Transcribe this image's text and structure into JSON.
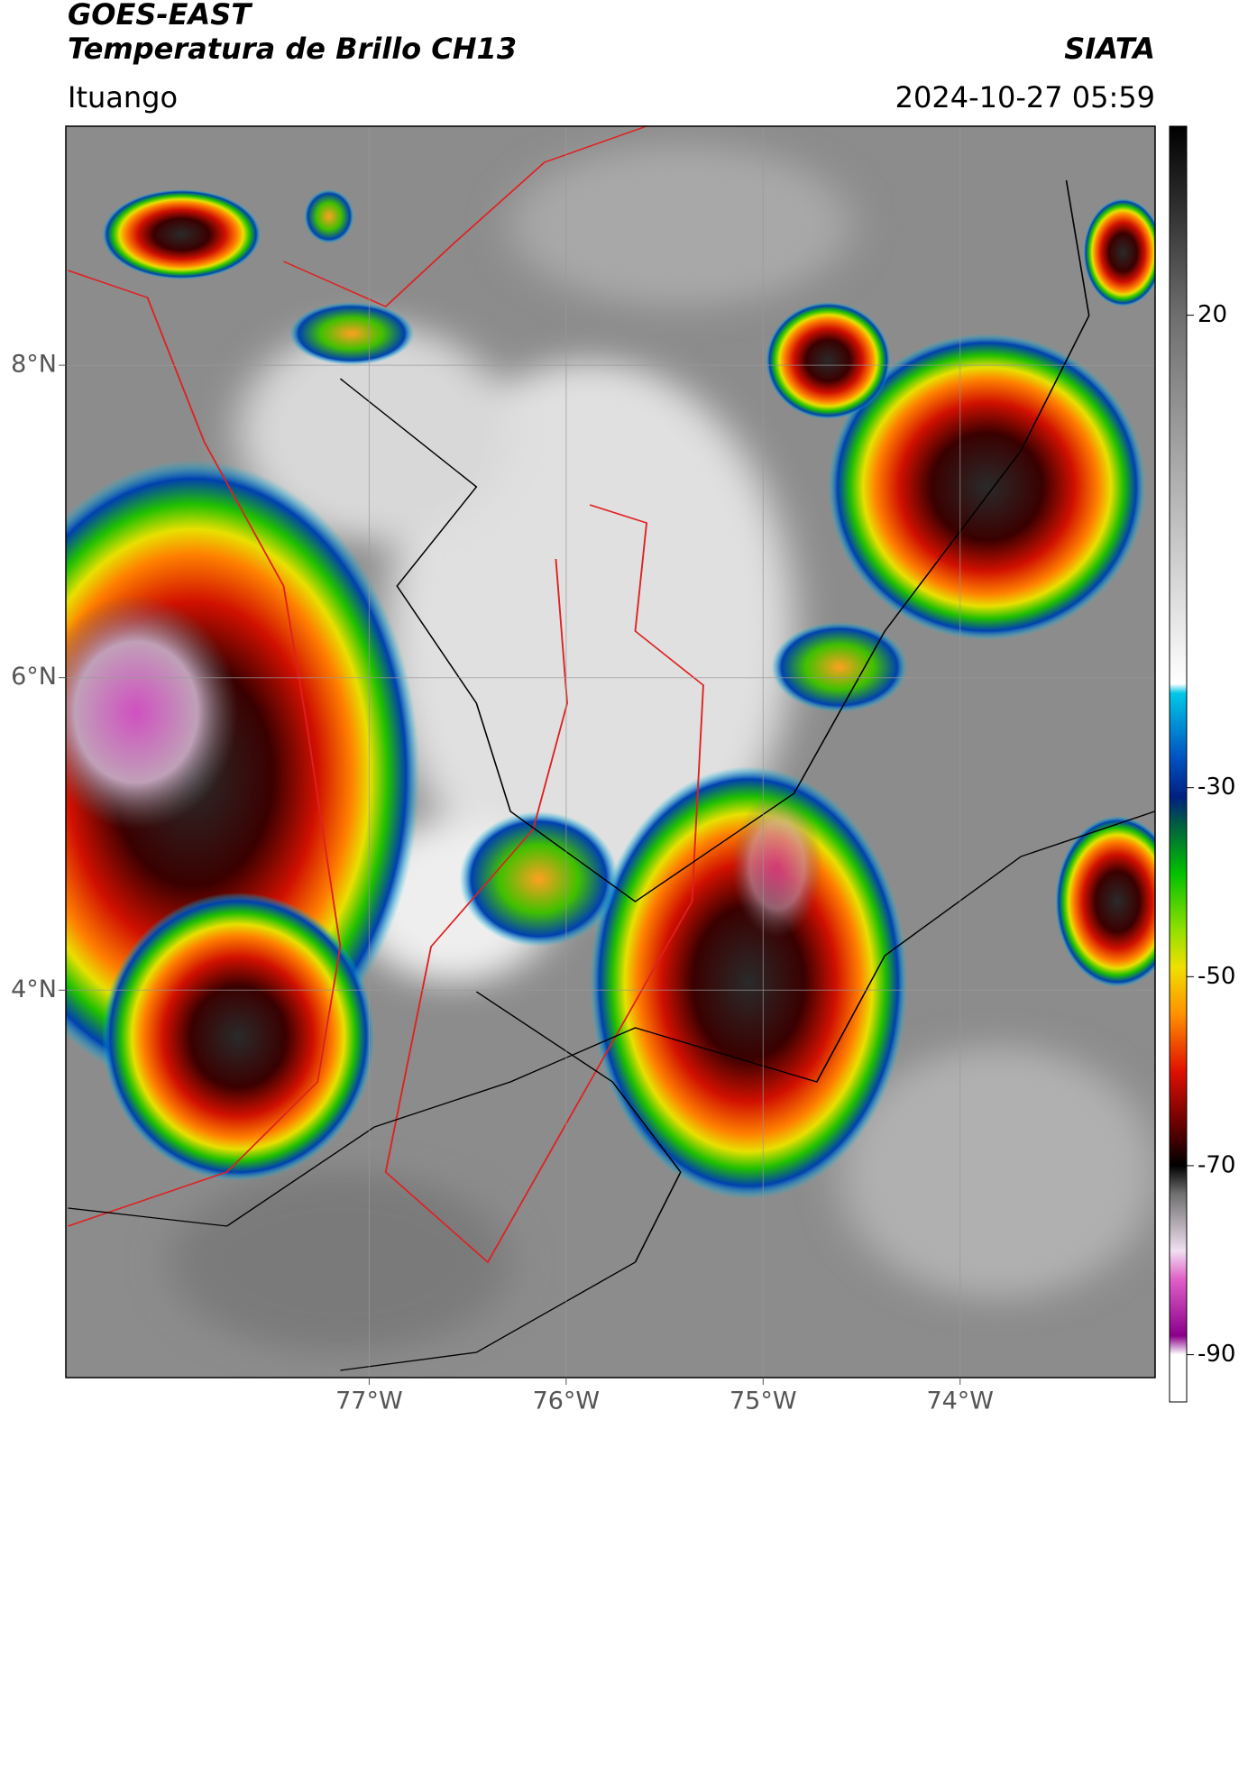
{
  "header": {
    "satellite": "GOES-EAST",
    "product": "Temperatura de Brillo CH13",
    "agency": "SIATA",
    "location": "Ituango",
    "datetime": "2024-10-27 05:59"
  },
  "map": {
    "xlim": [
      -78.54,
      -73.01
    ],
    "ylim": [
      1.52,
      9.53
    ],
    "xticks": [
      {
        "value": -77,
        "label": "77°W"
      },
      {
        "value": -76,
        "label": "76°W"
      },
      {
        "value": -75,
        "label": "75°W"
      },
      {
        "value": -74,
        "label": "74°W"
      }
    ],
    "yticks": [
      {
        "value": 4,
        "label": "4°N"
      },
      {
        "value": 6,
        "label": "6°N"
      },
      {
        "value": 8,
        "label": "8°N"
      }
    ],
    "grid": true
  },
  "colorbar": {
    "clim": [
      -95,
      40
    ],
    "ticks": [
      20,
      -30,
      -50,
      -70,
      -90
    ],
    "stops": [
      {
        "value": 40,
        "color": "#000000"
      },
      {
        "value": 20,
        "color": "#6e6e6e"
      },
      {
        "value": -19,
        "color": "#ffffff"
      },
      {
        "value": -20,
        "color": "#00c8e6"
      },
      {
        "value": -27,
        "color": "#0050c0"
      },
      {
        "value": -31,
        "color": "#002080"
      },
      {
        "value": -34,
        "color": "#006040"
      },
      {
        "value": -39,
        "color": "#00c000"
      },
      {
        "value": -45,
        "color": "#90e000"
      },
      {
        "value": -49,
        "color": "#f0e000"
      },
      {
        "value": -54,
        "color": "#ff9000"
      },
      {
        "value": -60,
        "color": "#e01000"
      },
      {
        "value": -66,
        "color": "#600000"
      },
      {
        "value": -70,
        "color": "#000000"
      },
      {
        "value": -73,
        "color": "#707070"
      },
      {
        "value": -79,
        "color": "#f0e0f0"
      },
      {
        "value": -82,
        "color": "#e060c8"
      },
      {
        "value": -88,
        "color": "#8a008a"
      },
      {
        "value": -90,
        "color": "#ffffff"
      },
      {
        "value": -95,
        "color": "#ffffff"
      }
    ]
  }
}
